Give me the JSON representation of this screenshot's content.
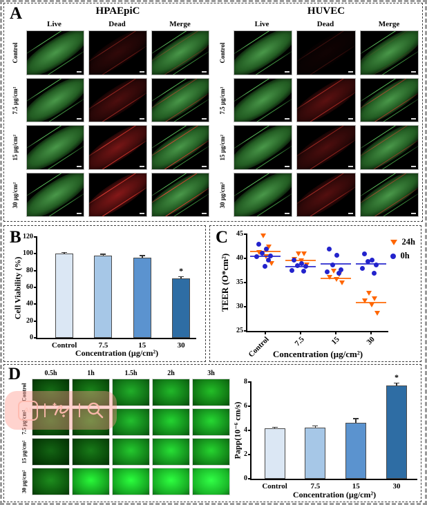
{
  "panels": {
    "a": {
      "label": "A",
      "groups": [
        {
          "title": "HPAEpiC",
          "columns": [
            "Live",
            "Dead",
            "Merge"
          ],
          "rows": [
            {
              "label": "Control",
              "dead_intensity": 0.35
            },
            {
              "label": "7.5 µg/cm²",
              "dead_intensity": 0.55
            },
            {
              "label": "15 µg/cm²",
              "dead_intensity": 0.85
            },
            {
              "label": "30 µg/cm²",
              "dead_intensity": 0.95
            }
          ]
        },
        {
          "title": "HUVEC",
          "columns": [
            "Live",
            "Dead",
            "Merge"
          ],
          "rows": [
            {
              "label": "Control",
              "dead_intensity": 0.12
            },
            {
              "label": "7.5 µg/cm²",
              "dead_intensity": 0.65
            },
            {
              "label": "15 µg/cm²",
              "dead_intensity": 0.55
            },
            {
              "label": "30 µg/cm²",
              "dead_intensity": 0.6
            }
          ]
        }
      ]
    },
    "b": {
      "label": "B"
    },
    "c": {
      "label": "C"
    },
    "d": {
      "label": "D",
      "col_headers": [
        "0.5h",
        "1h",
        "1.5h",
        "2h",
        "3h"
      ],
      "row_labels": [
        "Control",
        "7.5 µg/cm²",
        "15 µg/cm²",
        "30 µg/cm²"
      ],
      "tile_colors": [
        [
          "#073f07",
          "#0a4f0a",
          "#0f6a14",
          "#0f7014",
          "#107413"
        ],
        [
          "#084408",
          "#0b520b",
          "#107517",
          "#118219",
          "#12851a"
        ],
        [
          "#063a06",
          "#094809",
          "#117b17",
          "#138a1c",
          "#128218"
        ],
        [
          "#0c540c",
          "#149a1e",
          "#15a321",
          "#17a923",
          "#19b427"
        ]
      ]
    }
  },
  "watermark": {
    "ai_text": "AI"
  },
  "chart_data": [
    {
      "id": "cell-viability",
      "type": "bar",
      "categories": [
        "Control",
        "7.5",
        "15",
        "30"
      ],
      "values": [
        100,
        98,
        95,
        71
      ],
      "errors": [
        1.5,
        1.2,
        2.5,
        1.5
      ],
      "significance": [
        "",
        "",
        "",
        "*"
      ],
      "bar_colors": [
        "#dbe7f4",
        "#a6c7e7",
        "#5b93cf",
        "#2e6da4"
      ],
      "xlabel": "Concentration (µg/cm²)",
      "ylabel": "Cell Viability (%)",
      "ylim": [
        0,
        120
      ],
      "ytick_step": 20,
      "grid": false
    },
    {
      "id": "teer",
      "type": "scatter",
      "categories": [
        "Control",
        "7.5",
        "15",
        "30"
      ],
      "series": [
        {
          "name": "24h",
          "marker": "triangle-down",
          "color": "#ff6600",
          "points": [
            [
              44.6,
              42.4,
              41.2,
              40.4,
              39.0
            ],
            [
              41.0,
              40.9,
              39.8,
              39.5,
              38.6
            ],
            [
              37.4,
              36.6,
              36.1,
              35.7,
              34.9
            ],
            [
              32.8,
              31.7,
              31.2,
              30.3,
              28.6
            ]
          ],
          "means": [
            41.5,
            39.6,
            35.9,
            30.9
          ]
        },
        {
          "name": "0h",
          "marker": "circle",
          "color": "#2323cc",
          "points": [
            [
              43.0,
              41.9,
              41.1,
              40.5,
              40.3,
              39.6,
              38.4
            ],
            [
              39.7,
              39.0,
              38.5,
              38.3,
              37.5,
              37.3
            ],
            [
              41.9,
              40.6,
              38.6,
              37.6,
              37.2,
              36.9
            ],
            [
              40.9,
              39.6,
              39.3,
              38.6,
              37.9,
              37.0
            ]
          ],
          "means": [
            40.4,
            38.3,
            38.8,
            38.8
          ]
        }
      ],
      "xlabel": "Concentration (µg/cm²)",
      "ylabel": "TEER (O*cm²)",
      "ylim": [
        25,
        45
      ],
      "ytick_step": 5,
      "legend_position": "top-right",
      "grid": false
    },
    {
      "id": "papp",
      "type": "bar",
      "categories": [
        "Control",
        "7.5",
        "15",
        "30"
      ],
      "values": [
        4.15,
        4.25,
        4.65,
        7.7
      ],
      "errors": [
        0.08,
        0.1,
        0.3,
        0.2
      ],
      "significance": [
        "",
        "",
        "",
        "*"
      ],
      "bar_colors": [
        "#dbe7f4",
        "#a6c7e7",
        "#5b93cf",
        "#2e6da4"
      ],
      "xlabel": "Concentration (µg/cm²)",
      "ylabel": "Papp(10⁻⁶ cm/s)",
      "ylim": [
        0,
        8
      ],
      "ytick_step": 2,
      "grid": false
    }
  ]
}
